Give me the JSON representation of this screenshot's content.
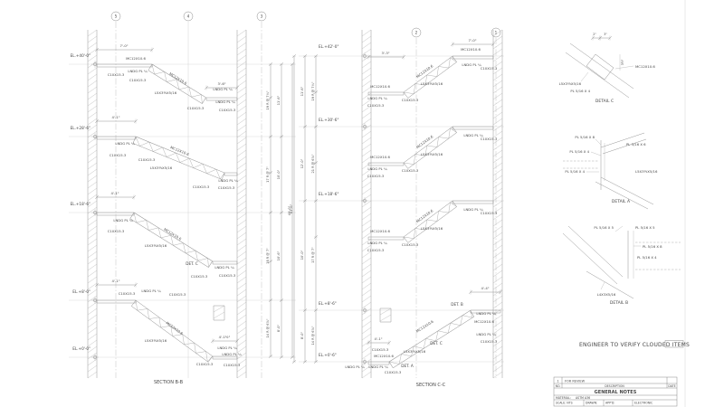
{
  "titles": {
    "section_b": "SECTION  B-B",
    "section_c": "SECTION  C-C",
    "note": "ENGINEER TO VERIFY CLOUDED ITEMS"
  },
  "grid_bubbles": {
    "b5": "5",
    "b4": "4",
    "b3": "3",
    "b2": "2",
    "b1": "1"
  },
  "members": {
    "stringer": "MC12X10.6",
    "channel": "C10X15.3",
    "landing_pl": "LNDG PL ¼",
    "angle": "L5X3½X5/16",
    "angle2": "L4X3X5/16"
  },
  "det_refs": {
    "a": "DET. A",
    "b": "DET. B",
    "c": "DET. C"
  },
  "left_section": {
    "elevations": [
      "EL.+40'-0\"",
      "EL.+28'-6\"",
      "EL.+18'-6\"",
      "EL.+8'-0\"",
      "EL.+0'-0\""
    ],
    "dims": {
      "top": "7'-0\"",
      "mid1": "3'-6\"",
      "l2": "4'-1\"",
      "l3": "4'-1\"",
      "l4": "4'-1\"",
      "bot": "4'-1½\""
    },
    "risers": [
      "19 R @ 7¼\"",
      "17 R @ 7\"",
      "18 R @ 7\"",
      "14 R @ 6⅞\""
    ],
    "heights": [
      "11'-6\"",
      "10'-0\"",
      "10'-6\"",
      "8'-0\""
    ],
    "overall": "40'-0\""
  },
  "right_section": {
    "elevations": [
      "EL.+42'-0\"",
      "EL.+30'-6\"",
      "EL.+18'-6\"",
      "EL.+8'-6\"",
      "EL.+0'-6\""
    ],
    "dims": {
      "top": "7'-0\"",
      "mid1": "3'-3\"",
      "l4": "4'-4\"",
      "bot": "4'-1\""
    },
    "risers": [
      "19 R @ 7¼\"",
      "21 R @ 6⅞\"",
      "17 R @ 7\"",
      "14 R @ 6⅞\""
    ],
    "heights": [
      "11'-6\"",
      "12'-0\"",
      "10'-0\"",
      "8'-0\""
    ],
    "overall": "41'-6\""
  },
  "details": {
    "c": {
      "caption": "DETAIL C",
      "plate": "PL 5/16 X 4",
      "dim_a": "2\"",
      "dim_b": "3\"",
      "dim_c": "3½\""
    },
    "a": {
      "caption": "DETAIL A",
      "plate8": "PL 5/16 X 8",
      "plate6": "PL 5/16 X 6",
      "plate4": "PL 5/16 X 4"
    },
    "b": {
      "caption": "DETAIL B",
      "plate5": "PL 5/16 X 5",
      "plate8": "PL 5/16 X 8",
      "plate4": "PL 5/16 X 4"
    }
  },
  "title_block": {
    "rev_no": "1",
    "rev_desc": "FOR REVIEW",
    "col_no": "NO.",
    "col_desc": "DESCRIPTION",
    "col_date": "DATE",
    "title": "GENERAL NOTES",
    "material_label": "MATERIAL:",
    "material_value": "ASTM A36",
    "f_scale": "SCALE: NTS",
    "f_drawn": "DRAWN:",
    "f_appd": "APP'D:",
    "f_elec": "ELECTRONIC"
  }
}
